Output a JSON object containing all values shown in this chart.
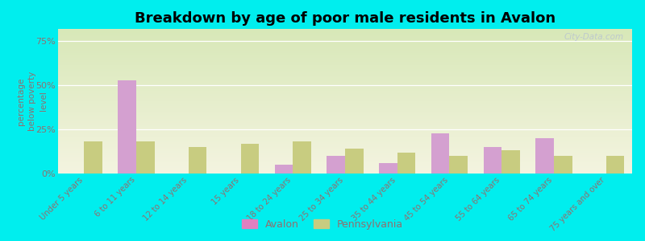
{
  "title": "Breakdown by age of poor male residents in Avalon",
  "categories": [
    "Under 5 years",
    "6 to 11 years",
    "12 to 14 years",
    "15 years",
    "18 to 24 years",
    "25 to 34 years",
    "35 to 44 years",
    "45 to 54 years",
    "55 to 64 years",
    "65 to 74 years",
    "75 years and over"
  ],
  "avalon_values": [
    0,
    53,
    0,
    0,
    5,
    10,
    6,
    23,
    15,
    20,
    0
  ],
  "pennsylvania_values": [
    18,
    18,
    15,
    17,
    18,
    14,
    12,
    10,
    13,
    10,
    10
  ],
  "avalon_color": "#d4a0d0",
  "pennsylvania_color": "#c8cc80",
  "background_top": "#d8e8b8",
  "background_bottom": "#f4f4e0",
  "outer_bg": "#00eeee",
  "ylabel": "percentage\nbelow poverty\nlevel",
  "yticks": [
    0,
    25,
    50,
    75
  ],
  "ytick_labels": [
    "0%",
    "25%",
    "50%",
    "75%"
  ],
  "ylim": [
    0,
    82
  ],
  "bar_width": 0.35,
  "title_fontsize": 13,
  "legend_labels": [
    "Avalon",
    "Pennsylvania"
  ],
  "avalon_legend_color": "#e080c0",
  "pennsylvania_legend_color": "#c8cc80",
  "watermark": "City-Data.com",
  "tick_color": "#907070",
  "label_color": "#907070"
}
